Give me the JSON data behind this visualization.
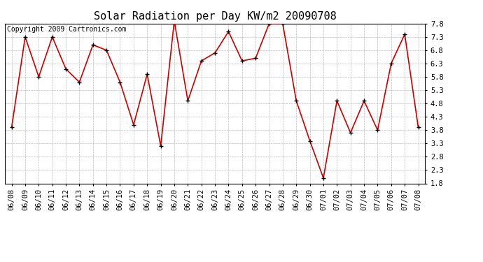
{
  "title": "Solar Radiation per Day KW/m2 20090708",
  "copyright_text": "Copyright 2009 Cartronics.com",
  "x_labels": [
    "06/08",
    "06/09",
    "06/10",
    "06/11",
    "06/12",
    "06/13",
    "06/14",
    "06/15",
    "06/16",
    "06/17",
    "06/18",
    "06/19",
    "06/20",
    "06/21",
    "06/22",
    "06/23",
    "06/24",
    "06/25",
    "06/26",
    "06/27",
    "06/28",
    "06/29",
    "06/30",
    "07/01",
    "07/02",
    "07/03",
    "07/04",
    "07/05",
    "07/06",
    "07/07",
    "07/08"
  ],
  "y_values": [
    3.9,
    7.3,
    5.8,
    7.3,
    6.1,
    5.6,
    7.0,
    6.8,
    5.6,
    4.0,
    5.9,
    3.2,
    7.9,
    4.9,
    6.4,
    6.7,
    7.5,
    6.4,
    6.5,
    7.8,
    7.8,
    4.9,
    3.4,
    2.0,
    4.9,
    3.7,
    4.9,
    3.8,
    6.3,
    7.4,
    3.9
  ],
  "y_ticks": [
    1.8,
    2.3,
    2.8,
    3.3,
    3.8,
    4.3,
    4.8,
    5.3,
    5.8,
    6.3,
    6.8,
    7.3,
    7.8
  ],
  "y_min": 1.8,
  "y_max": 7.8,
  "line_color": "#cc0000",
  "marker_color": "#000000",
  "background_color": "#ffffff",
  "grid_color": "#bbbbbb",
  "title_fontsize": 11,
  "copyright_fontsize": 7,
  "tick_fontsize": 7.5
}
